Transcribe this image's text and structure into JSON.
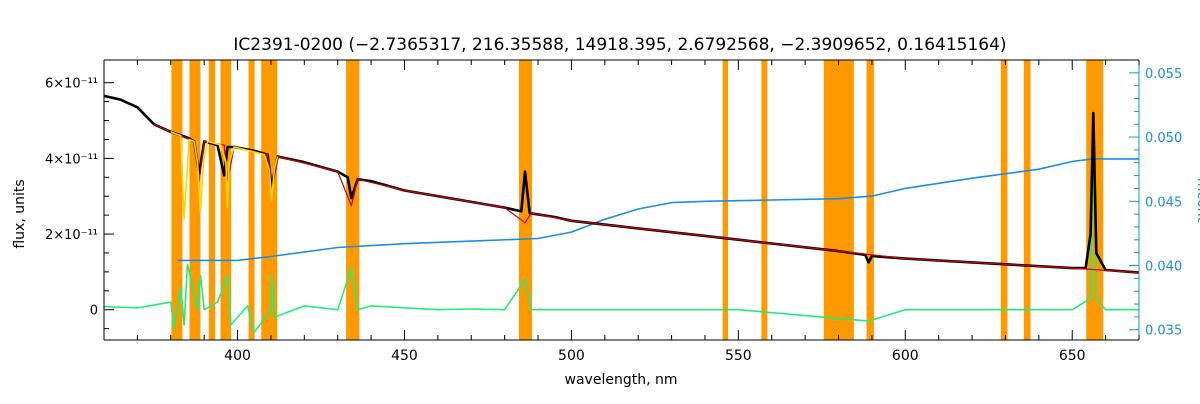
{
  "chart_data": {
    "type": "line",
    "title": "IC2391-0200   (−2.7365317, 216.35588, 14918.395, 2.6792568, −2.3909652, 0.16415164)",
    "xlabel": "wavelength, nm",
    "ylabel": "flux, units",
    "ylabel_right": "mcont",
    "xlim": [
      360,
      670
    ],
    "ylim": [
      -8e-12,
      6.6e-11
    ],
    "ylim_right": [
      0.0342,
      0.056
    ],
    "x_ticks": [
      {
        "value": 400,
        "label": "400"
      },
      {
        "value": 450,
        "label": "450"
      },
      {
        "value": 500,
        "label": "500"
      },
      {
        "value": 550,
        "label": "550"
      },
      {
        "value": 600,
        "label": "600"
      },
      {
        "value": 650,
        "label": "650"
      }
    ],
    "y_ticks": [
      {
        "value": 0,
        "label": "0"
      },
      {
        "value": 2e-11,
        "label": "2×10⁻¹¹"
      },
      {
        "value": 4e-11,
        "label": "4×10⁻¹¹"
      },
      {
        "value": 6e-11,
        "label": "6×10⁻¹¹"
      }
    ],
    "y_ticks_right": [
      {
        "value": 0.035,
        "label": "0.035"
      },
      {
        "value": 0.04,
        "label": "0.040"
      },
      {
        "value": 0.045,
        "label": "0.045"
      },
      {
        "value": 0.05,
        "label": "0.050"
      },
      {
        "value": 0.055,
        "label": "0.055"
      }
    ],
    "masked_regions": [
      [
        380.2,
        383.5
      ],
      [
        385.6,
        388.9
      ],
      [
        391.4,
        393.3
      ],
      [
        394.9,
        398.1
      ],
      [
        403.3,
        405.1
      ],
      [
        407.1,
        411.9
      ],
      [
        432.5,
        436.5
      ],
      [
        484.3,
        488.2
      ],
      [
        545.3,
        546.9
      ],
      [
        556.9,
        558.7
      ],
      [
        575.6,
        584.6
      ],
      [
        588.4,
        590.6
      ],
      [
        628.6,
        630.6
      ],
      [
        635.5,
        637.5
      ],
      [
        654.2,
        659.3
      ]
    ],
    "series": [
      {
        "role": "observed spectrum",
        "axis": "left",
        "x": [
          360,
          365,
          370,
          375,
          380,
          385,
          387,
          388.5,
          390,
          394,
          396,
          397,
          399,
          405,
          409,
          410.2,
          412,
          420,
          430,
          433,
          434.1,
          436,
          440,
          450,
          460,
          470,
          480,
          485,
          486.1,
          487.5,
          495,
          500,
          510,
          520,
          530,
          540,
          550,
          560,
          570,
          580,
          588,
          589,
          590,
          600,
          620,
          640,
          650,
          654,
          655.5,
          656.3,
          657.2,
          660,
          670
        ],
        "y": [
          5.65e-11,
          5.55e-11,
          5.35e-11,
          4.9e-11,
          4.7e-11,
          4.55e-11,
          4.45e-11,
          3.6e-11,
          4.45e-11,
          4.35e-11,
          3.55e-11,
          4.3e-11,
          4.3e-11,
          4.2e-11,
          4.1e-11,
          3.25e-11,
          4.05e-11,
          3.9e-11,
          3.65e-11,
          3.5e-11,
          2.95e-11,
          3.45e-11,
          3.4e-11,
          3.15e-11,
          3e-11,
          2.85e-11,
          2.7e-11,
          2.6e-11,
          3.65e-11,
          2.55e-11,
          2.45e-11,
          2.35e-11,
          2.25e-11,
          2.15e-11,
          2.05e-11,
          1.95e-11,
          1.85e-11,
          1.75e-11,
          1.65e-11,
          1.55e-11,
          1.45e-11,
          1.25e-11,
          1.42e-11,
          1.35e-11,
          1.25e-11,
          1.15e-11,
          1.1e-11,
          1.1e-11,
          2e-11,
          5.2e-11,
          1.5e-11,
          1.05e-11,
          9.8e-12
        ],
        "color": "#000000"
      },
      {
        "role": "fitted model",
        "axis": "left",
        "x": [
          375,
          380,
          387,
          388.5,
          390,
          396,
          397,
          399,
          409,
          410.2,
          412,
          430,
          434.1,
          436,
          450,
          480,
          486.1,
          488,
          500,
          550,
          600,
          650,
          670
        ],
        "y": [
          4.9e-11,
          4.7e-11,
          4.45e-11,
          3.4e-11,
          4.45e-11,
          4.35e-11,
          3.4e-11,
          4.3e-11,
          4.1e-11,
          3.1e-11,
          4.05e-11,
          3.65e-11,
          2.75e-11,
          3.45e-11,
          3.15e-11,
          2.7e-11,
          2.3e-11,
          2.55e-11,
          2.35e-11,
          1.85e-11,
          1.35e-11,
          1.1e-11,
          9.8e-12
        ],
        "color": "#cc0000"
      },
      {
        "role": "fit in masked regions",
        "axis": "left",
        "x": [
          380,
          383,
          384,
          385.5,
          387,
          388,
          388.9,
          389.8,
          391,
          393,
          395,
          396.5,
          397,
          397.5,
          399,
          408,
          409.5,
          410.2,
          411,
          412
        ],
        "y": [
          4.7e-11,
          4.6e-11,
          2.4e-11,
          4.5e-11,
          4.45e-11,
          3.9e-11,
          2.6e-11,
          3.9e-11,
          4.45e-11,
          4.4e-11,
          4.35e-11,
          3.9e-11,
          2.7e-11,
          3.9e-11,
          4.3e-11,
          4.1e-11,
          3.7e-11,
          2.9e-11,
          3.7e-11,
          4.05e-11
        ],
        "color": "#ffd700"
      },
      {
        "role": "residuals",
        "axis": "left",
        "x": [
          360,
          370,
          380,
          381,
          383,
          384,
          385,
          388,
          388.9,
          390,
          394,
          397,
          398,
          403,
          405,
          410,
          410.2,
          411,
          420,
          430,
          434.1,
          436,
          440,
          450,
          460,
          470,
          480,
          486.1,
          488,
          500,
          520,
          550,
          589,
          600,
          620,
          640,
          650,
          655.5,
          656.3,
          657.2,
          660,
          670
        ],
        "y": [
          8e-13,
          5e-13,
          2e-12,
          -5e-12,
          6e-12,
          -4e-12,
          1.2e-11,
          0.0,
          9e-12,
          0.0,
          2e-12,
          9e-12,
          -4e-12,
          1e-12,
          -6e-12,
          0.0,
          9e-12,
          -2e-12,
          1e-12,
          0.0,
          1.1e-11,
          0.0,
          1e-12,
          5e-13,
          0.0,
          2e-13,
          0.0,
          8e-12,
          0.0,
          0.0,
          0.0,
          0.0,
          -3e-12,
          0.0,
          0.0,
          0.0,
          0.0,
          3e-12,
          4.1e-11,
          3e-12,
          0.0,
          0.0
        ],
        "color": "#22ee77"
      },
      {
        "role": "continuum",
        "axis": "right",
        "x": [
          382,
          400,
          410,
          430,
          450,
          470,
          490,
          500,
          510,
          520,
          530,
          540,
          560,
          580,
          590,
          600,
          620,
          640,
          650,
          656,
          670
        ],
        "y": [
          0.0404,
          0.0404,
          0.0407,
          0.0414,
          0.0417,
          0.0419,
          0.0421,
          0.0426,
          0.0436,
          0.0444,
          0.0449,
          0.045,
          0.0451,
          0.0452,
          0.0454,
          0.046,
          0.0468,
          0.0475,
          0.0481,
          0.0483,
          0.0483
        ],
        "color": "#1a8fe0"
      }
    ],
    "colors": {
      "mask": "#ff9900",
      "axis_left": "#000000",
      "axis_right": "#1a8fe0"
    }
  }
}
